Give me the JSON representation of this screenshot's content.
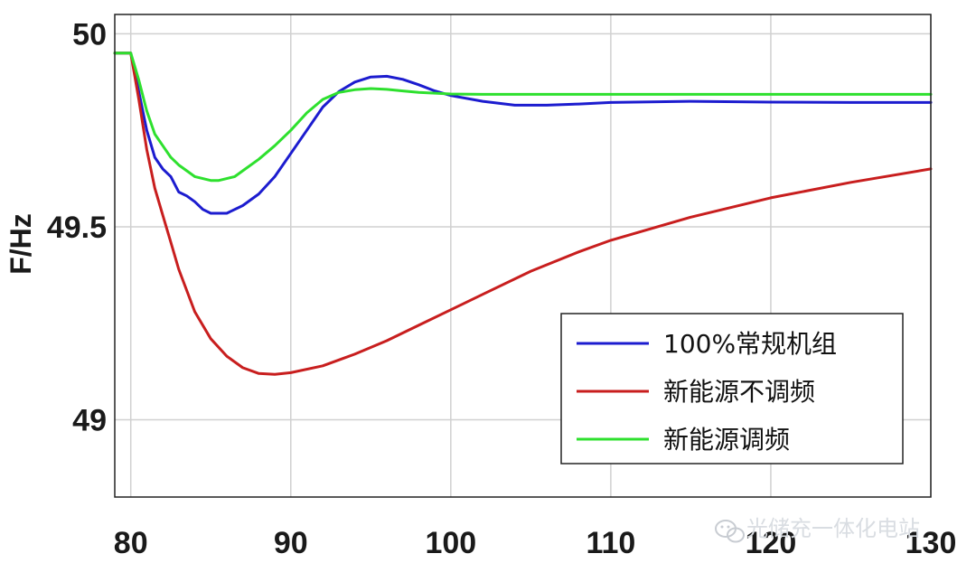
{
  "chart_data": {
    "type": "line",
    "title": "",
    "xlabel": "",
    "ylabel": "F/Hz",
    "xlim": [
      79,
      130
    ],
    "ylim": [
      48.8,
      50.05
    ],
    "x_ticks": [
      80,
      90,
      100,
      110,
      120,
      130
    ],
    "y_ticks": [
      49,
      49.5,
      50
    ],
    "y_tick_labels": [
      "49",
      "49.5",
      "50"
    ],
    "grid": true,
    "legend_position": "lower-right",
    "series": [
      {
        "name": "100%常规机组",
        "color": "#1c1ccf",
        "x": [
          79,
          80,
          80.5,
          81,
          81.5,
          82,
          82.5,
          83,
          83.5,
          84,
          84.5,
          85,
          86,
          87,
          88,
          89,
          90,
          91,
          92,
          93,
          94,
          95,
          96,
          97,
          98,
          99,
          100,
          102,
          104,
          106,
          108,
          110,
          115,
          120,
          125,
          130
        ],
        "y": [
          49.95,
          49.95,
          49.85,
          49.75,
          49.68,
          49.65,
          49.63,
          49.59,
          49.58,
          49.565,
          49.545,
          49.535,
          49.535,
          49.555,
          49.585,
          49.63,
          49.69,
          49.75,
          49.81,
          49.85,
          49.875,
          49.888,
          49.89,
          49.882,
          49.868,
          49.852,
          49.84,
          49.825,
          49.815,
          49.815,
          49.818,
          49.822,
          49.825,
          49.823,
          49.822,
          49.822
        ]
      },
      {
        "name": "新能源不调频",
        "color": "#c81e1e",
        "x": [
          79,
          80,
          80.5,
          81,
          81.5,
          82,
          82.5,
          83,
          84,
          85,
          86,
          87,
          88,
          89,
          90,
          92,
          94,
          96,
          98,
          100,
          102,
          105,
          108,
          110,
          115,
          120,
          125,
          130
        ],
        "y": [
          49.95,
          49.95,
          49.83,
          49.7,
          49.6,
          49.53,
          49.46,
          49.39,
          49.28,
          49.21,
          49.165,
          49.135,
          49.12,
          49.118,
          49.122,
          49.14,
          49.17,
          49.205,
          49.245,
          49.285,
          49.325,
          49.385,
          49.435,
          49.465,
          49.525,
          49.575,
          49.615,
          49.65
        ]
      },
      {
        "name": "新能源调频",
        "color": "#2ee02e",
        "x": [
          79,
          80,
          80.5,
          81,
          81.5,
          82,
          82.5,
          83,
          83.5,
          84,
          84.5,
          85,
          85.5,
          86,
          86.5,
          87,
          88,
          89,
          90,
          91,
          92,
          93,
          94,
          95,
          96,
          97,
          98,
          99,
          100,
          102,
          105,
          110,
          115,
          120,
          125,
          130
        ],
        "y": [
          49.95,
          49.95,
          49.88,
          49.8,
          49.74,
          49.71,
          49.68,
          49.66,
          49.645,
          49.63,
          49.625,
          49.62,
          49.62,
          49.625,
          49.63,
          49.645,
          49.675,
          49.71,
          49.75,
          49.795,
          49.83,
          49.848,
          49.855,
          49.858,
          49.856,
          49.852,
          49.848,
          49.846,
          49.844,
          49.843,
          49.843,
          49.843,
          49.843,
          49.843,
          49.843,
          49.843
        ]
      }
    ]
  },
  "watermark": {
    "text": "光储充一体化电站",
    "icon": "wechat-icon"
  },
  "colors": {
    "grid": "#d0d0d0",
    "axis": "#222222",
    "background": "#ffffff"
  }
}
